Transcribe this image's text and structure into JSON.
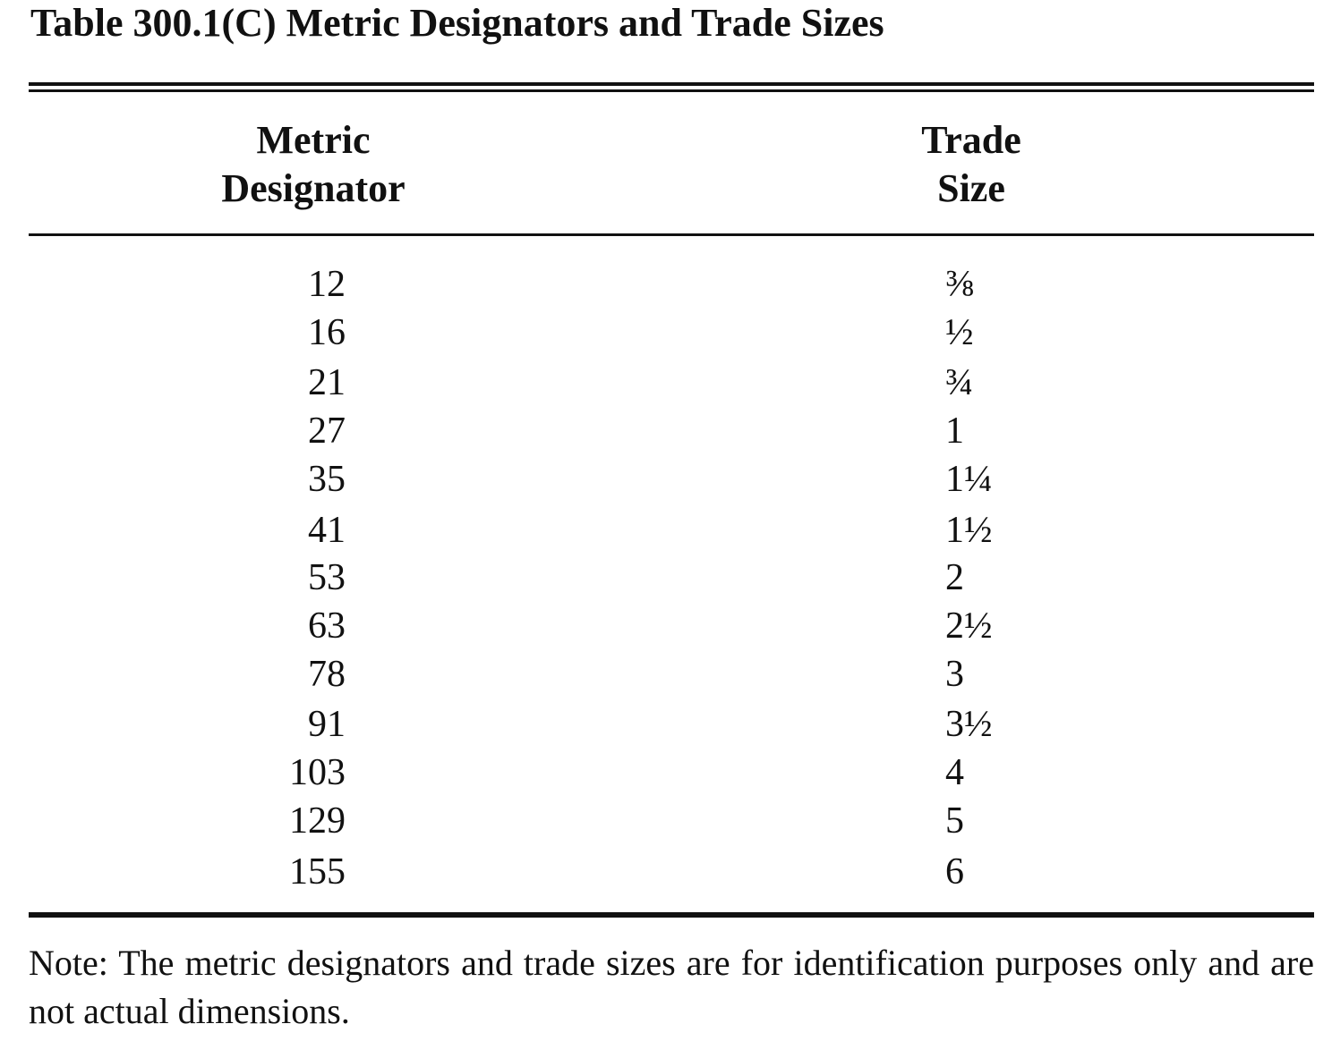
{
  "title": "Table 300.1(C) Metric Designators and Trade Sizes",
  "table": {
    "headers": [
      "Metric Designator",
      "Trade Size"
    ],
    "rows": [
      [
        "12",
        "⅜"
      ],
      [
        "16",
        "½"
      ],
      [
        "21",
        "¾"
      ],
      [
        "27",
        "1"
      ],
      [
        "35",
        "1¼"
      ],
      [
        "41",
        "1½"
      ],
      [
        "53",
        "2"
      ],
      [
        "63",
        "2½"
      ],
      [
        "78",
        "3"
      ],
      [
        "91",
        "3½"
      ],
      [
        "103",
        "4"
      ],
      [
        "129",
        "5"
      ],
      [
        "155",
        "6"
      ]
    ]
  },
  "note": "Note: The metric designators and trade sizes are for identification purposes only and are not actual dimensions."
}
